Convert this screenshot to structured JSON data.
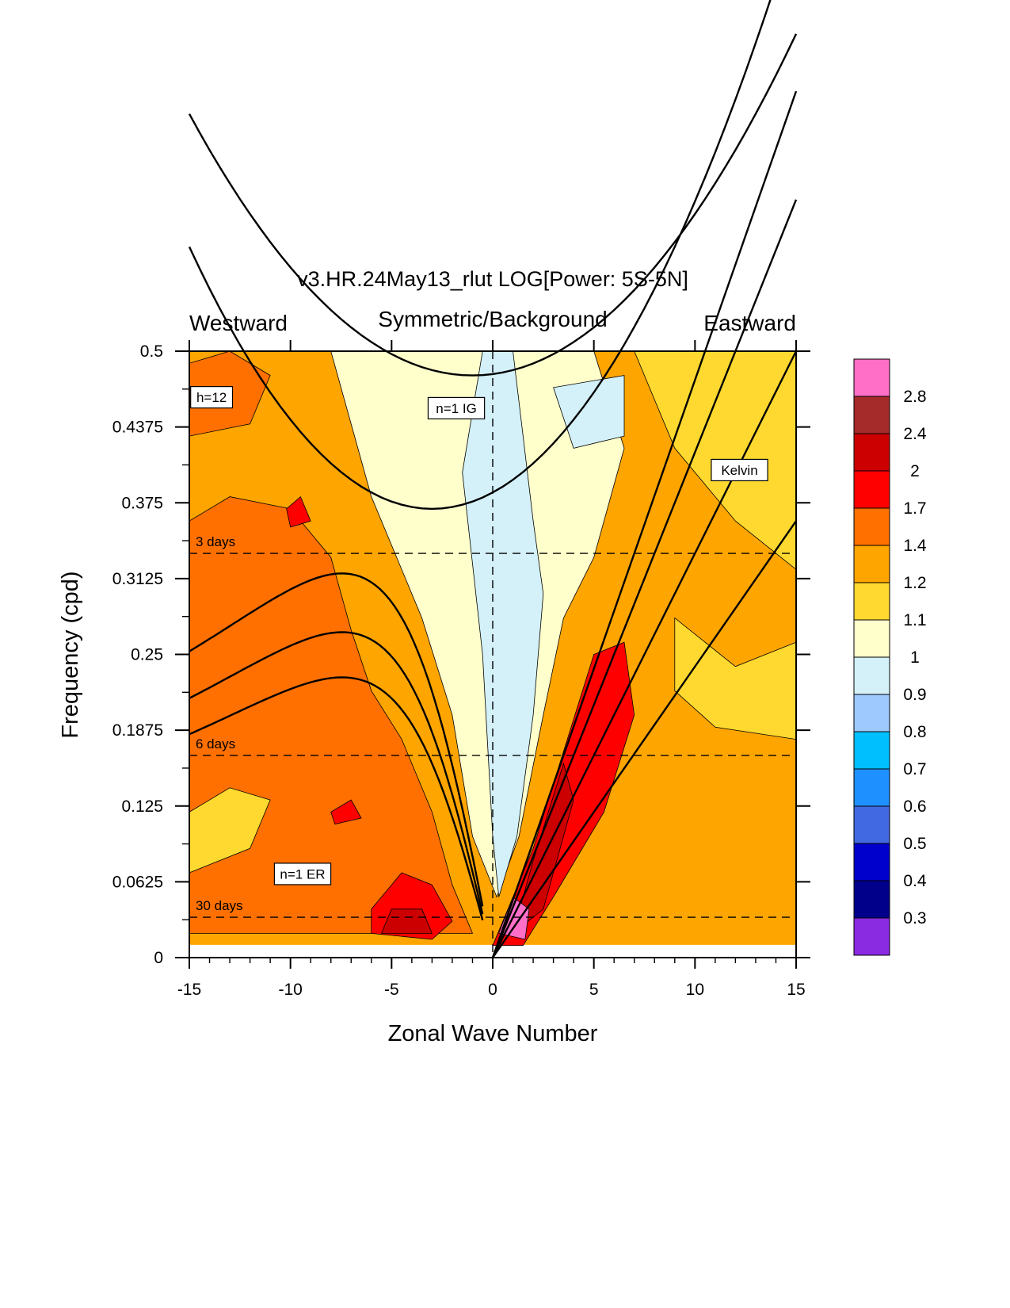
{
  "chart_data": {
    "type": "heatmap",
    "title": "v3.HR.24May13_rlut LOG[Power: 5S-5N]",
    "subtitle_left": "Westward",
    "subtitle_center": "Symmetric/Background",
    "subtitle_right": "Eastward",
    "xlabel": "Zonal Wave Number",
    "ylabel": "Frequency (cpd)",
    "xlim": [
      -15,
      15
    ],
    "ylim": [
      0,
      0.5
    ],
    "x_ticks": [
      "-15",
      "-10",
      "-5",
      "0",
      "5",
      "10",
      "15"
    ],
    "x_tick_values": [
      -15,
      -10,
      -5,
      0,
      5,
      10,
      15
    ],
    "y_ticks": [
      "0",
      "0.0625",
      "0.125",
      "0.1875",
      "0.25",
      "0.3125",
      "0.375",
      "0.4375",
      "0.5"
    ],
    "y_tick_values": [
      0,
      0.0625,
      0.125,
      0.1875,
      0.25,
      0.3125,
      0.375,
      0.4375,
      0.5
    ],
    "period_lines": [
      {
        "label": "3 days",
        "frequency": 0.3333
      },
      {
        "label": "6 days",
        "frequency": 0.1667
      },
      {
        "label": "30 days",
        "frequency": 0.0333
      }
    ],
    "dispersion_curves": [
      {
        "label": "Kelvin",
        "family": "kelvin"
      },
      {
        "label": "n=1 IG",
        "family": "ig"
      },
      {
        "label": "n=1 ER",
        "family": "er"
      },
      {
        "label": "h=12",
        "family": "depth"
      }
    ],
    "colorbar": {
      "labels": [
        "2.8",
        "2.4",
        "2",
        "1.7",
        "1.4",
        "1.2",
        "1.1",
        "1",
        "0.9",
        "0.8",
        "0.7",
        "0.6",
        "0.5",
        "0.4",
        "0.3"
      ],
      "colors": [
        "#ff6ec7",
        "#a52a2a",
        "#cc0000",
        "#ff0000",
        "#ff7000",
        "#ffa500",
        "#ffd92f",
        "#ffffcc",
        "#d4f1f9",
        "#9ec9ff",
        "#00bfff",
        "#1e90ff",
        "#4169e1",
        "#0000cd",
        "#00008b",
        "#8a2be2"
      ]
    },
    "value_colors": {
      "background_low_freq_westward": "#ffa500",
      "westward_enhanced": "#ff7000",
      "high_freq_center": "#ffffcc",
      "center_ridge": "#d4f1f9",
      "kelvin_band": "#ff0000",
      "mjo_peak": "#ff6ec7"
    }
  }
}
